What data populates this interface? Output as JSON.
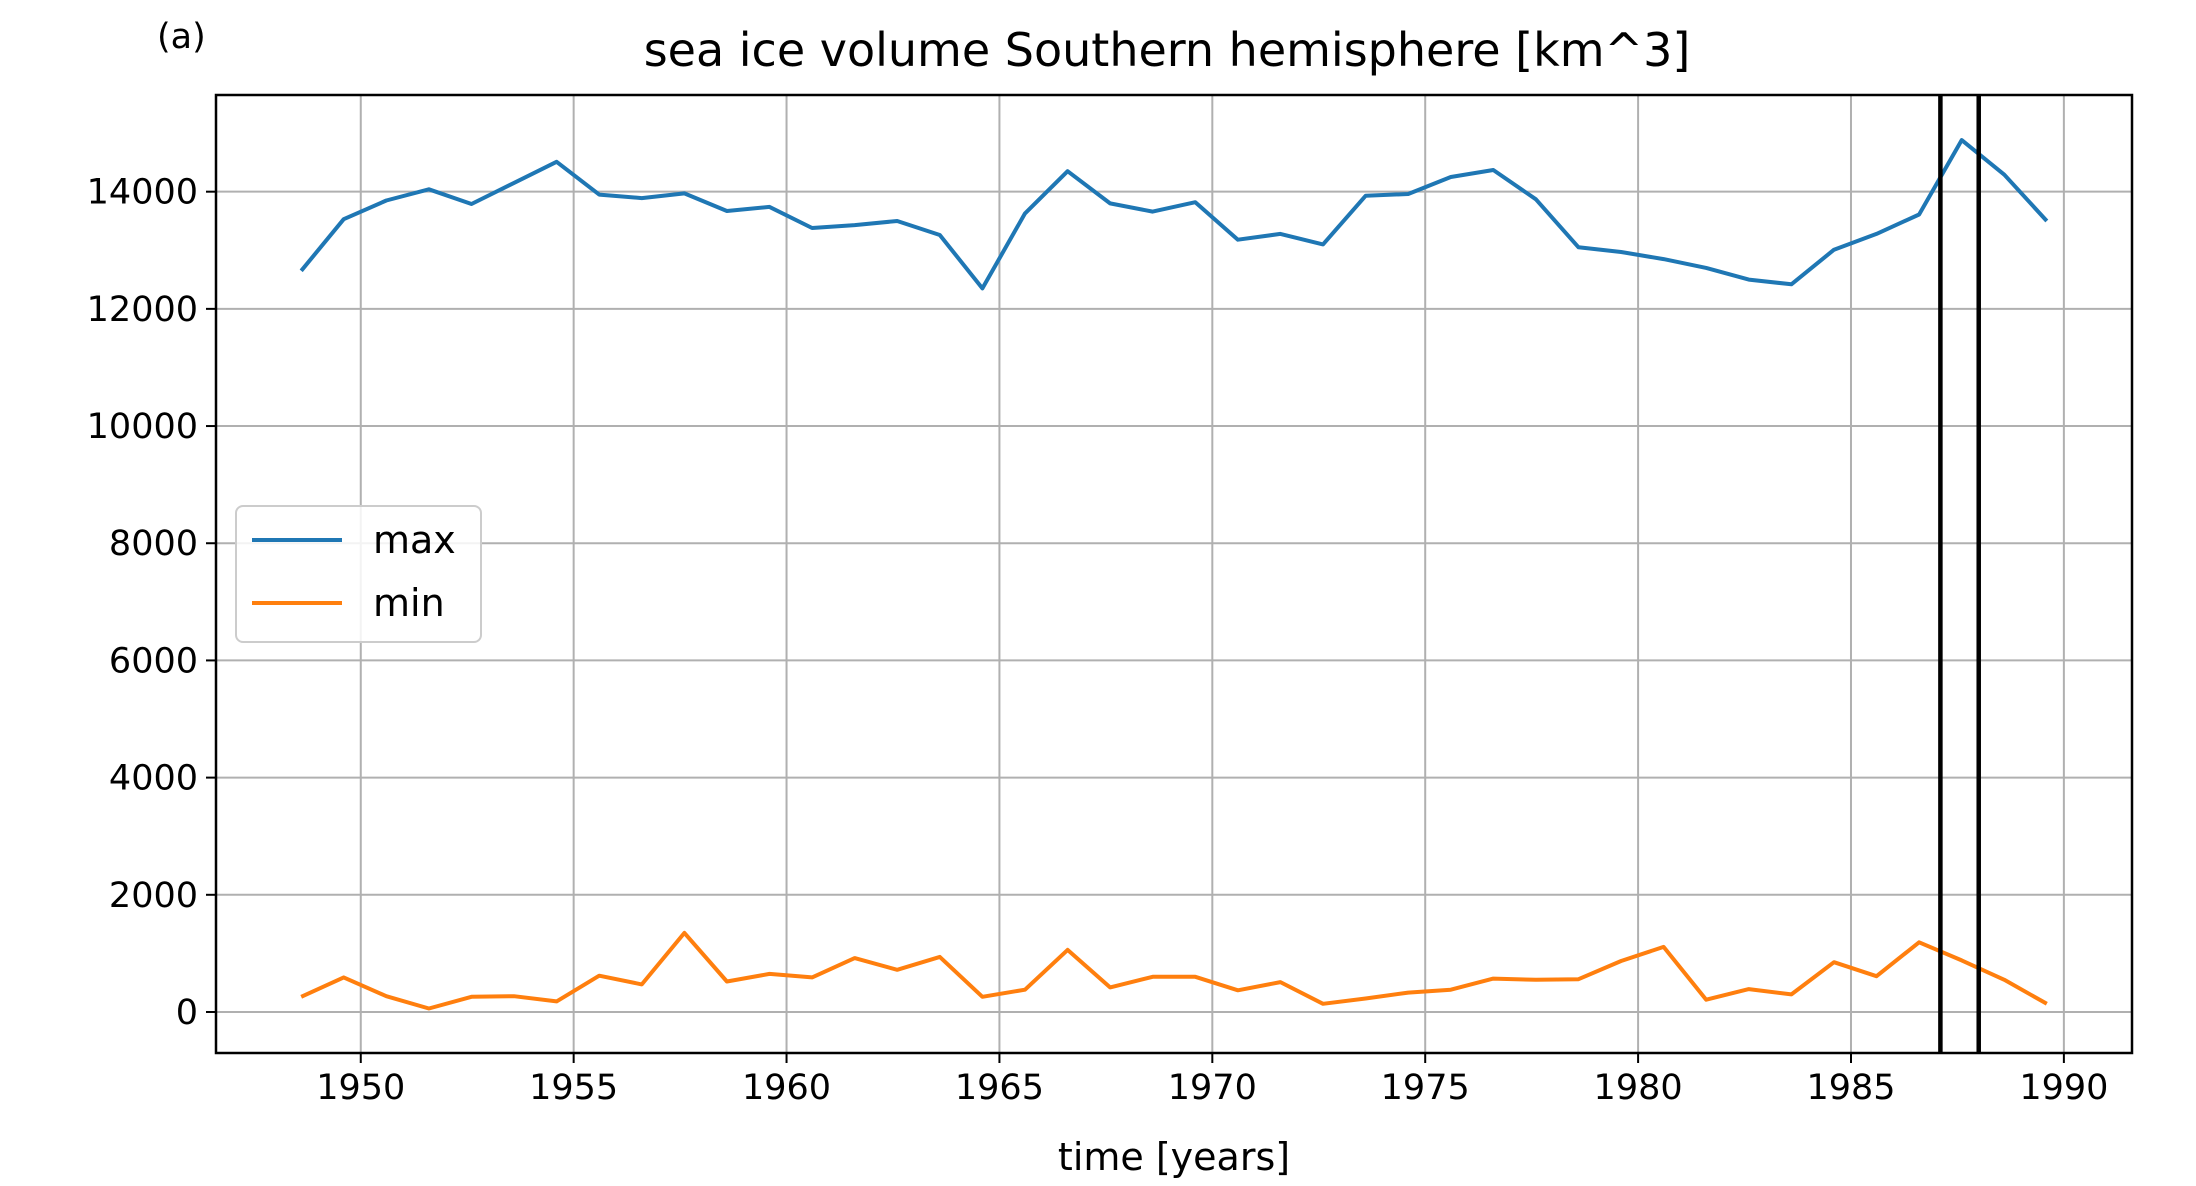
{
  "panel_label": "(a)",
  "colors": {
    "max": "#1f77b4",
    "min": "#ff7f0e",
    "grid": "#b0b0b0",
    "marker_lines": "#000000"
  },
  "chart_data": {
    "type": "line",
    "title": "sea ice volume Southern hemisphere [km^3]",
    "xlabel": "time [years]",
    "ylabel": "",
    "xlim": [
      1946.6,
      1991.6
    ],
    "ylim": [
      -700,
      15650
    ],
    "xticks": [
      1950,
      1955,
      1960,
      1965,
      1970,
      1975,
      1980,
      1985,
      1990
    ],
    "yticks": [
      0,
      2000,
      4000,
      6000,
      8000,
      10000,
      12000,
      14000
    ],
    "grid": true,
    "legend_position": "center-left",
    "vertical_lines": [
      1987.1,
      1988.0
    ],
    "x": [
      1948.6,
      1949.6,
      1950.6,
      1951.6,
      1952.6,
      1953.6,
      1954.6,
      1955.6,
      1956.6,
      1957.6,
      1958.6,
      1959.6,
      1960.6,
      1961.6,
      1962.6,
      1963.6,
      1964.6,
      1965.6,
      1966.6,
      1967.6,
      1968.6,
      1969.6,
      1970.6,
      1971.6,
      1972.6,
      1973.6,
      1974.6,
      1975.6,
      1976.6,
      1977.6,
      1978.6,
      1979.6,
      1980.6,
      1981.6,
      1982.6,
      1983.6,
      1984.6,
      1985.6,
      1986.6,
      1987.6,
      1988.6,
      1989.6
    ],
    "series": [
      {
        "name": "max",
        "values": [
          12650,
          13530,
          13850,
          14040,
          13790,
          14150,
          14510,
          13950,
          13890,
          13970,
          13670,
          13740,
          13380,
          13430,
          13500,
          13260,
          12350,
          13630,
          14350,
          13800,
          13660,
          13820,
          13180,
          13280,
          13100,
          13930,
          13960,
          14250,
          14370,
          13870,
          13050,
          12970,
          12850,
          12700,
          12500,
          12420,
          13010,
          13280,
          13610,
          14880,
          14290,
          13500
        ]
      },
      {
        "name": "min",
        "values": [
          260,
          590,
          270,
          60,
          260,
          270,
          180,
          620,
          470,
          1350,
          520,
          650,
          590,
          920,
          720,
          940,
          260,
          380,
          1060,
          420,
          600,
          600,
          370,
          510,
          140,
          230,
          330,
          380,
          570,
          550,
          560,
          870,
          1110,
          210,
          390,
          300,
          850,
          610,
          1190,
          880,
          550,
          140
        ]
      }
    ]
  }
}
